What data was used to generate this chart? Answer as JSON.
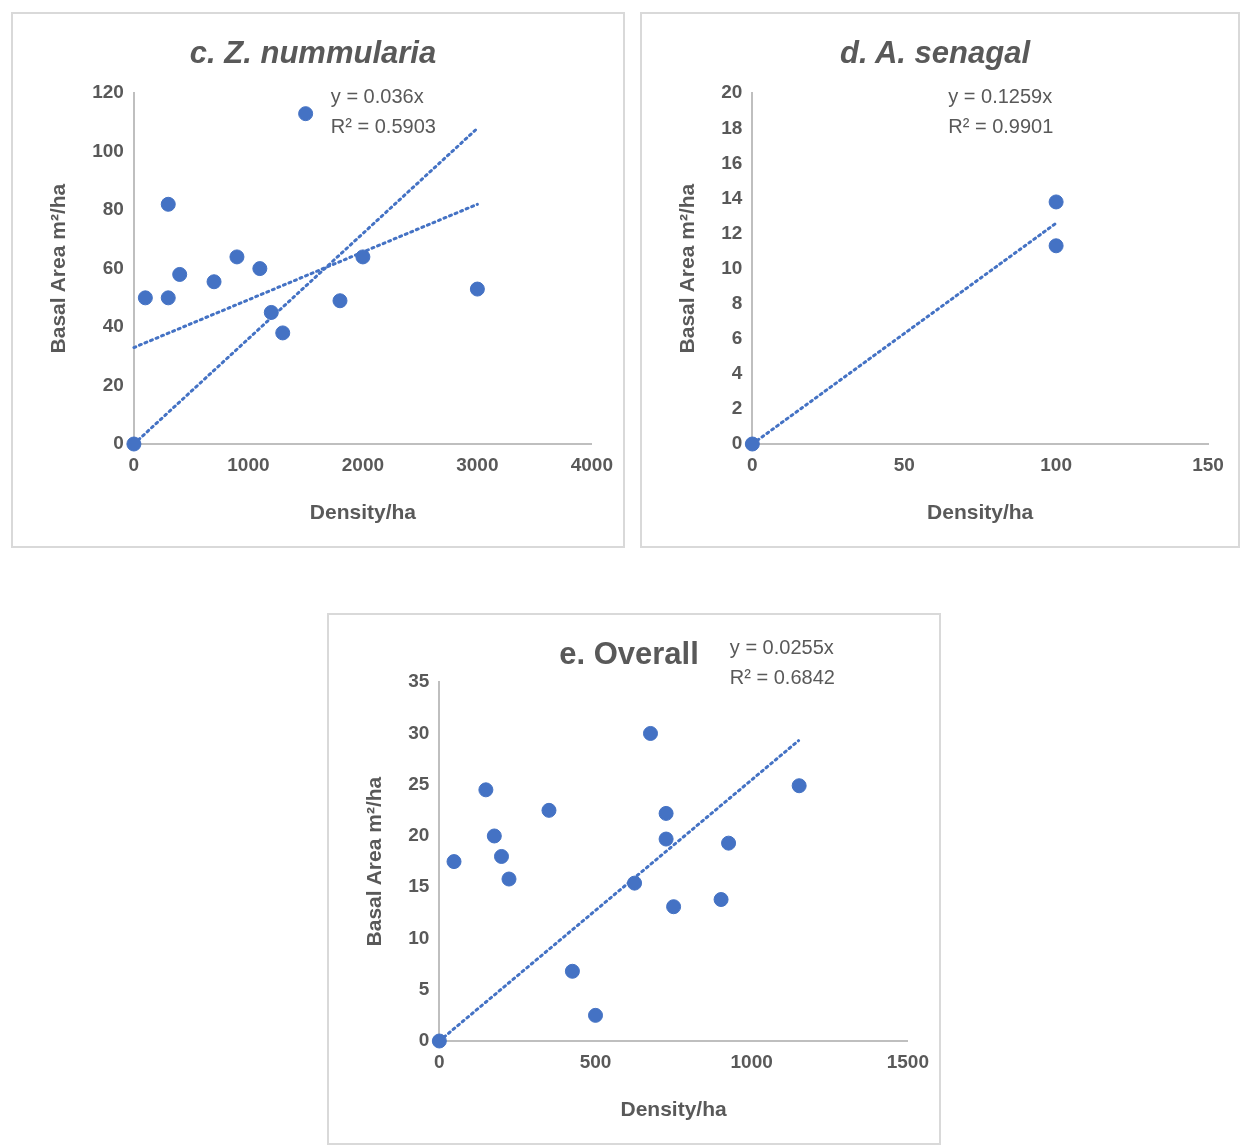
{
  "chart_data": [
    {
      "type": "scatter",
      "title": "c. Z. nummularia",
      "xlabel": "Density/ha",
      "ylabel": "Basal Area m²/ha",
      "xlim": [
        0,
        4000
      ],
      "xticks": [
        0,
        1000,
        2000,
        3000,
        4000
      ],
      "ylim": [
        0,
        120
      ],
      "yticks": [
        0,
        20,
        40,
        60,
        80,
        100,
        120
      ],
      "grid": false,
      "legend": false,
      "marker": "circle",
      "annotations": [
        "y = 0.036x",
        "R² = 0.5903"
      ],
      "series": [
        {
          "type": "scatter",
          "color": "#4472c4",
          "x": [
            0,
            100,
            300,
            300,
            400,
            700,
            900,
            1100,
            1200,
            1300,
            1500,
            1800,
            2000,
            3000
          ],
          "values": [
            0,
            50,
            50,
            82,
            58,
            55.5,
            64,
            60,
            45,
            38,
            113,
            49,
            64,
            53
          ]
        },
        {
          "type": "line",
          "color": "#4472c4",
          "line_style": "dotted",
          "marker": "none",
          "x": [
            0,
            3000
          ],
          "values": [
            0,
            108
          ]
        },
        {
          "type": "line",
          "color": "#4472c4",
          "line_style": "dotted",
          "marker": "none",
          "x": [
            0,
            3000
          ],
          "values": [
            33,
            82
          ]
        }
      ]
    },
    {
      "type": "scatter",
      "title": "d. A. senagal",
      "xlabel": "Density/ha",
      "ylabel": "Basal Area m²/ha",
      "xlim": [
        0,
        150
      ],
      "xticks": [
        0,
        50,
        100,
        150
      ],
      "ylim": [
        0,
        20
      ],
      "yticks": [
        0,
        2,
        4,
        6,
        8,
        10,
        12,
        14,
        16,
        18,
        20
      ],
      "grid": false,
      "legend": false,
      "marker": "circle",
      "annotations": [
        "y = 0.1259x",
        "R² = 0.9901"
      ],
      "series": [
        {
          "type": "scatter",
          "color": "#4472c4",
          "x": [
            0,
            100,
            100
          ],
          "values": [
            0,
            13.8,
            11.3
          ]
        },
        {
          "type": "line",
          "color": "#4472c4",
          "line_style": "dotted",
          "marker": "none",
          "x": [
            0,
            100
          ],
          "values": [
            0,
            12.59
          ]
        }
      ]
    },
    {
      "type": "scatter",
      "title": "e. Overall",
      "xlabel": "Density/ha",
      "ylabel": "Basal Area m²/ha",
      "xlim": [
        0,
        1500
      ],
      "xticks": [
        0,
        500,
        1000,
        1500
      ],
      "ylim": [
        0,
        35
      ],
      "yticks": [
        0,
        5,
        10,
        15,
        20,
        25,
        30,
        35
      ],
      "grid": false,
      "legend": false,
      "marker": "circle",
      "annotations": [
        "y = 0.0255x",
        "R² = 0.6842"
      ],
      "series": [
        {
          "type": "scatter",
          "color": "#4472c4",
          "x": [
            0,
            47,
            149,
            176,
            199,
            223,
            351,
            426,
            500,
            625,
            676,
            726,
            726,
            750,
            902,
            926,
            1152
          ],
          "values": [
            0,
            17.5,
            24.5,
            20,
            18,
            15.8,
            22.5,
            6.8,
            2.5,
            15.4,
            30,
            22.2,
            19.7,
            13.1,
            13.8,
            19.3,
            24.9
          ]
        },
        {
          "type": "line",
          "color": "#4472c4",
          "line_style": "dotted",
          "marker": "none",
          "x": [
            0,
            1150
          ],
          "values": [
            0,
            29.3
          ]
        }
      ]
    }
  ]
}
